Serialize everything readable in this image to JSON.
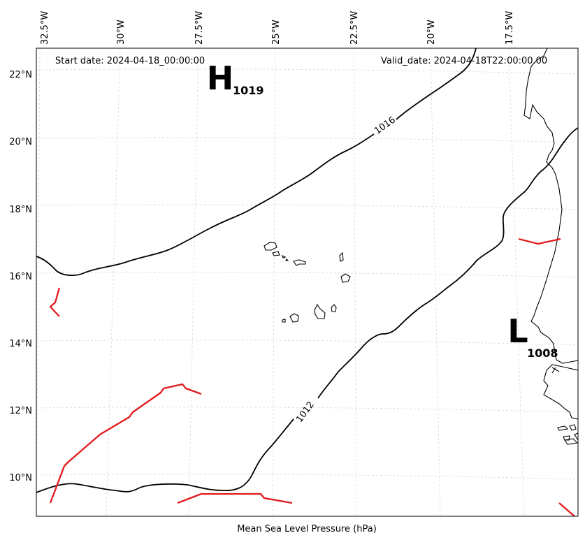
{
  "map": {
    "start_date": "Start date: 2024-04-18_00:00:00",
    "valid_date": "Valid_date: 2024-04-18T22:00:00.00",
    "xlabel": "Mean Sea Level Pressure (hPa)",
    "lon_ticks": [
      "32.5°W",
      "30°W",
      "27.5°W",
      "25°W",
      "22.5°W",
      "20°W",
      "17.5°W"
    ],
    "lat_ticks": [
      "22°N",
      "20°N",
      "18°N",
      "16°N",
      "14°N",
      "12°N",
      "10°N"
    ],
    "contour_labels": {
      "c1016": "1016",
      "c1012": "1012"
    },
    "high_center": {
      "letter": "H",
      "value": "1019"
    },
    "low_center": {
      "letter": "L",
      "value": "1008"
    },
    "colors": {
      "isobar": "#000000",
      "front": "#e31a1c",
      "grid": "#d6d6d6"
    }
  }
}
